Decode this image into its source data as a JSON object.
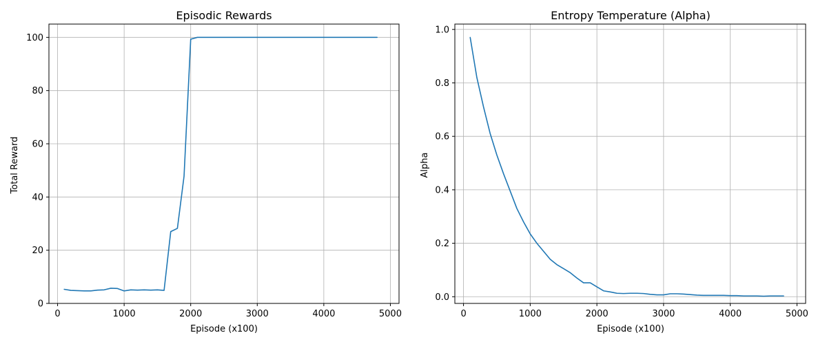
{
  "colors": {
    "series": "#1f77b4"
  },
  "chart_data": [
    {
      "type": "line",
      "title": "Episodic Rewards",
      "xlabel": "Episode (x100)",
      "ylabel": "Total Reward",
      "grid": true,
      "xlim": [
        -130,
        5130
      ],
      "ylim": [
        0,
        105
      ],
      "xticks": [
        0,
        1000,
        2000,
        3000,
        4000,
        5000
      ],
      "xtick_labels": [
        "0",
        "1000",
        "2000",
        "3000",
        "4000",
        "5000"
      ],
      "yticks": [
        0,
        20,
        40,
        60,
        80,
        100
      ],
      "ytick_labels": [
        "0",
        "20",
        "40",
        "60",
        "80",
        "100"
      ],
      "series": [
        {
          "x": [
            100,
            200,
            300,
            400,
            500,
            600,
            700,
            800,
            900,
            1000,
            1100,
            1200,
            1300,
            1400,
            1500,
            1600,
            1700,
            1800,
            1900,
            2000,
            2100,
            2200,
            2300,
            2400,
            2500,
            2600,
            2700,
            2800,
            2900,
            3000,
            3100,
            3200,
            3300,
            3400,
            3500,
            3600,
            3700,
            3800,
            3900,
            4000,
            4100,
            4200,
            4300,
            4400,
            4500,
            4600,
            4700,
            4800
          ],
          "values": [
            5.3,
            4.9,
            4.8,
            4.7,
            4.7,
            5.0,
            5.1,
            5.7,
            5.6,
            4.7,
            5.1,
            5.0,
            5.1,
            5.0,
            5.1,
            4.9,
            27.0,
            28.2,
            47.8,
            99.3,
            100,
            100,
            100,
            100,
            100,
            100,
            100,
            100,
            100,
            100,
            100,
            100,
            100,
            100,
            100,
            100,
            100,
            100,
            100,
            100,
            100,
            100,
            100,
            100,
            100,
            100,
            100,
            100
          ]
        }
      ]
    },
    {
      "type": "line",
      "title": "Entropy Temperature (Alpha)",
      "xlabel": "Episode (x100)",
      "ylabel": "Alpha",
      "grid": true,
      "xlim": [
        -130,
        5130
      ],
      "ylim": [
        -0.025,
        1.02
      ],
      "xticks": [
        0,
        1000,
        2000,
        3000,
        4000,
        5000
      ],
      "xtick_labels": [
        "0",
        "1000",
        "2000",
        "3000",
        "4000",
        "5000"
      ],
      "yticks": [
        0,
        0.2,
        0.4,
        0.6,
        0.8,
        1.0
      ],
      "ytick_labels": [
        "0.0",
        "0.2",
        "0.4",
        "0.6",
        "0.8",
        "1.0"
      ],
      "series": [
        {
          "x": [
            100,
            200,
            300,
            400,
            500,
            600,
            700,
            800,
            900,
            1000,
            1100,
            1200,
            1300,
            1400,
            1500,
            1600,
            1700,
            1800,
            1900,
            2000,
            2100,
            2200,
            2300,
            2400,
            2500,
            2600,
            2700,
            2800,
            2900,
            3000,
            3100,
            3200,
            3300,
            3400,
            3500,
            3600,
            3700,
            3800,
            3900,
            4000,
            4100,
            4200,
            4300,
            4400,
            4500,
            4600,
            4700,
            4800
          ],
          "values": [
            0.97,
            0.82,
            0.71,
            0.61,
            0.53,
            0.46,
            0.395,
            0.33,
            0.28,
            0.235,
            0.2,
            0.17,
            0.14,
            0.12,
            0.105,
            0.09,
            0.07,
            0.052,
            0.052,
            0.037,
            0.022,
            0.018,
            0.013,
            0.012,
            0.013,
            0.013,
            0.012,
            0.009,
            0.007,
            0.007,
            0.011,
            0.011,
            0.01,
            0.008,
            0.006,
            0.005,
            0.005,
            0.005,
            0.005,
            0.004,
            0.004,
            0.003,
            0.003,
            0.003,
            0.002,
            0.003,
            0.003,
            0.003
          ]
        }
      ]
    }
  ]
}
